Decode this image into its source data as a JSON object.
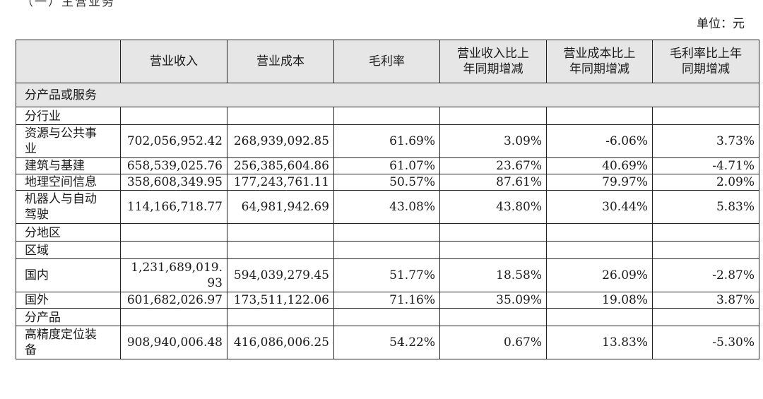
{
  "partial_header_text": "（一）主营业务",
  "unit_label": "单位：元",
  "table": {
    "headers": [
      "",
      "营业收入",
      "营业成本",
      "毛利率",
      "营业收入比上年同期增减",
      "营业成本比上年同期增减",
      "毛利率比上年同期增减"
    ],
    "header_lines": [
      [],
      [
        "营业收入"
      ],
      [
        "营业成本"
      ],
      [
        "毛利率"
      ],
      [
        "营业收入比上",
        "年同期增减"
      ],
      [
        "营业成本比上",
        "年同期增减"
      ],
      [
        "毛利率比上年",
        "同期增减"
      ]
    ],
    "rows": [
      {
        "kind": "section",
        "name": "分产品或服务"
      },
      {
        "kind": "sub",
        "name": "分行业"
      },
      {
        "kind": "double",
        "name": "资源与公共事业",
        "cells": [
          "702,056,952.42",
          "268,939,092.85",
          "61.69%",
          "3.09%",
          "-6.06%",
          "3.73%"
        ]
      },
      {
        "kind": "single",
        "name": "建筑与基建",
        "cells": [
          "658,539,025.76",
          "256,385,604.86",
          "61.07%",
          "23.67%",
          "40.69%",
          "-4.71%"
        ]
      },
      {
        "kind": "single",
        "name": "地理空间信息",
        "cells": [
          "358,608,349.95",
          "177,243,761.11",
          "50.57%",
          "87.61%",
          "79.97%",
          "2.09%"
        ]
      },
      {
        "kind": "double",
        "name": "机器人与自动驾驶",
        "cells": [
          "114,166,718.77",
          "64,981,942.69",
          "43.08%",
          "43.80%",
          "30.44%",
          "5.83%"
        ]
      },
      {
        "kind": "sub",
        "name": "分地区"
      },
      {
        "kind": "sub",
        "name": "区域"
      },
      {
        "kind": "double",
        "name": "国内",
        "cells": [
          "1,231,689,019.93",
          "594,039,279.45",
          "51.77%",
          "18.58%",
          "26.09%",
          "-2.87%"
        ]
      },
      {
        "kind": "single",
        "name": "国外",
        "cells": [
          "601,682,026.97",
          "173,511,122.06",
          "71.16%",
          "35.09%",
          "19.08%",
          "3.87%"
        ]
      },
      {
        "kind": "sub",
        "name": "分产品"
      },
      {
        "kind": "double",
        "name": "高精度定位装备",
        "cells": [
          "908,940,006.48",
          "416,086,006.25",
          "54.22%",
          "0.67%",
          "13.83%",
          "-5.30%"
        ]
      }
    ]
  }
}
